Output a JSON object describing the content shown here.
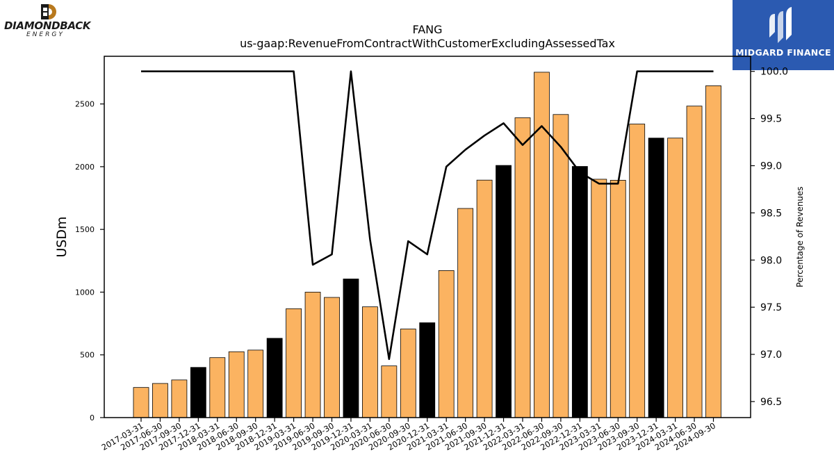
{
  "header": {
    "title": "FANG",
    "subtitle": "us-gaap:RevenueFromContractWithCustomerExcludingAssessedTax"
  },
  "logos": {
    "left_name": "DIAMONDBACK",
    "left_sub": "ENERGY",
    "right_name": "MIDGARD FINANCE"
  },
  "colors": {
    "bar": "#fbb361",
    "bar_highlight": "#000000",
    "line": "#000000",
    "right_logo_bg": "#2b5ab1",
    "left_logo_accent": "#b8791e"
  },
  "chart_data": {
    "type": "bar",
    "categories": [
      "2017-03-31",
      "2017-06-30",
      "2017-09-30",
      "2017-12-31",
      "2018-03-31",
      "2018-06-30",
      "2018-09-30",
      "2018-12-31",
      "2019-03-31",
      "2019-06-30",
      "2019-09-30",
      "2019-12-31",
      "2020-03-31",
      "2020-06-30",
      "2020-09-30",
      "2020-12-31",
      "2021-03-31",
      "2021-06-30",
      "2021-09-30",
      "2021-12-31",
      "2022-03-31",
      "2022-06-30",
      "2022-09-30",
      "2022-12-31",
      "2023-03-31",
      "2023-06-30",
      "2023-09-30",
      "2023-12-31",
      "2024-03-31",
      "2024-06-30",
      "2024-09-30"
    ],
    "series": [
      {
        "values": [
          240,
          272,
          300,
          400,
          478,
          525,
          538,
          632,
          868,
          1000,
          958,
          1105,
          883,
          412,
          706,
          756,
          1172,
          1667,
          1893,
          2010,
          2390,
          2753,
          2416,
          2002,
          1900,
          1892,
          2340,
          2228,
          2228,
          2483,
          2645
        ],
        "highlight": [
          false,
          false,
          false,
          true,
          false,
          false,
          false,
          true,
          false,
          false,
          false,
          true,
          false,
          false,
          false,
          true,
          false,
          false,
          false,
          true,
          false,
          false,
          false,
          true,
          false,
          false,
          false,
          true,
          false,
          false,
          false
        ]
      },
      {
        "values": [
          100.0,
          100.0,
          100.0,
          100.0,
          100.0,
          100.0,
          100.0,
          100.0,
          100.0,
          97.95,
          98.06,
          100.0,
          98.22,
          96.95,
          98.2,
          98.06,
          98.99,
          99.17,
          99.32,
          99.45,
          99.22,
          99.42,
          99.2,
          98.93,
          98.81,
          98.81,
          100.0,
          100.0,
          100.0,
          100.0,
          100.0
        ]
      }
    ],
    "ylabel": "USDm",
    "y2label": "Percentage of Revenues",
    "xlabel": "",
    "ylim": [
      0,
      2880
    ],
    "y2lim": [
      96.33,
      100.16
    ],
    "yticks": [
      "0",
      "500",
      "1000",
      "1500",
      "2000",
      "2500"
    ],
    "y2ticks": [
      "96.5",
      "97.0",
      "97.5",
      "98.0",
      "98.5",
      "99.0",
      "99.5",
      "100.0"
    ],
    "grid": false,
    "legend": "none"
  }
}
